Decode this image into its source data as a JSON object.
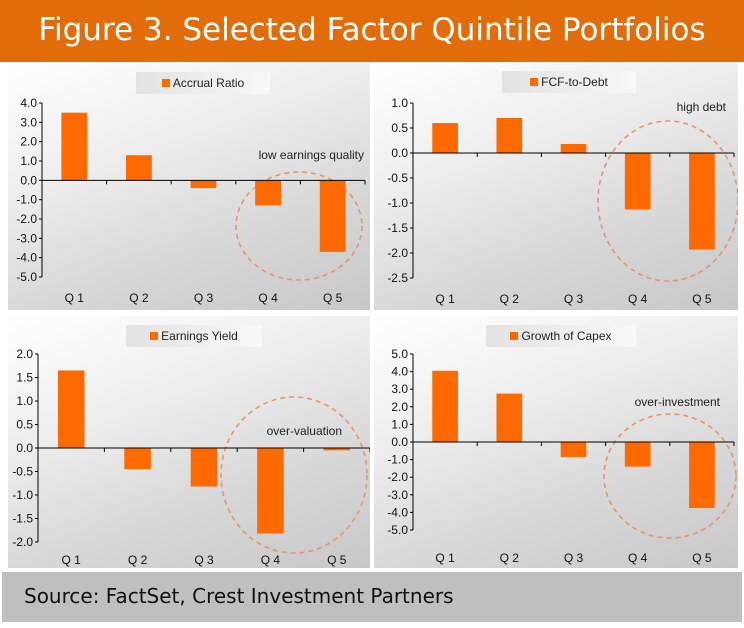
{
  "title": "Figure 3. Selected Factor Quintile Portfolios",
  "source": "Source: FactSet, Crest Investment Partners",
  "colors": {
    "header": "#e36c0a",
    "bar": "#ff6a00",
    "annotation_circle": "#e8956a",
    "footer": "#bfbfbf"
  },
  "chart_data": [
    {
      "type": "bar",
      "title": "",
      "legend": "Accrual Ratio",
      "legend_position": "top-center",
      "categories": [
        "Q 1",
        "Q 2",
        "Q 3",
        "Q 4",
        "Q 5"
      ],
      "values": [
        3.5,
        1.3,
        -0.4,
        -1.3,
        -3.7
      ],
      "ylim": [
        -5.0,
        4.0
      ],
      "yticks": [
        4.0,
        3.0,
        2.0,
        1.0,
        0.0,
        -1.0,
        -2.0,
        -3.0,
        -4.0,
        -5.0
      ],
      "ytick_labels": [
        "4.0",
        "3.0",
        "2.0",
        "1.0",
        "0.0",
        "-1.0",
        "-2.0",
        "-3.0",
        "-4.0",
        "-5.0"
      ],
      "xlabel": "",
      "ylabel": "",
      "grid": false,
      "annotation": "low earnings quality",
      "annotation_highlight": [
        "Q 4",
        "Q 5"
      ]
    },
    {
      "type": "bar",
      "title": "",
      "legend": "FCF-to-Debt",
      "legend_position": "top-center",
      "categories": [
        "Q 1",
        "Q 2",
        "Q 3",
        "Q 4",
        "Q 5"
      ],
      "values": [
        0.6,
        0.7,
        0.18,
        -1.13,
        -1.93
      ],
      "ylim": [
        -2.5,
        1.0
      ],
      "yticks": [
        1.0,
        0.5,
        0.0,
        -0.5,
        -1.0,
        -1.5,
        -2.0,
        -2.5
      ],
      "ytick_labels": [
        "1.0",
        "0.5",
        "0.0",
        "-0.5",
        "-1.0",
        "-1.5",
        "-2.0",
        "-2.5"
      ],
      "xlabel": "",
      "ylabel": "",
      "grid": false,
      "annotation": "high debt",
      "annotation_highlight": [
        "Q 4",
        "Q 5"
      ]
    },
    {
      "type": "bar",
      "title": "",
      "legend": "Earnings Yield",
      "legend_position": "top-center",
      "categories": [
        "Q 1",
        "Q 2",
        "Q 3",
        "Q 4",
        "Q 5"
      ],
      "values": [
        1.65,
        -0.45,
        -0.82,
        -1.82,
        -0.05
      ],
      "ylim": [
        -2.0,
        2.0
      ],
      "yticks": [
        2.0,
        1.5,
        1.0,
        0.5,
        0.0,
        -0.5,
        -1.0,
        -1.5,
        -2.0
      ],
      "ytick_labels": [
        "2.0",
        "1.5",
        "1.0",
        "0.5",
        "0.0",
        "-0.5",
        "-1.0",
        "-1.5",
        "-2.0"
      ],
      "xlabel": "",
      "ylabel": "",
      "grid": false,
      "annotation": "over-valuation",
      "annotation_highlight": [
        "Q 4",
        "Q 5"
      ]
    },
    {
      "type": "bar",
      "title": "",
      "legend": "Growth of Capex",
      "legend_position": "top-center",
      "categories": [
        "Q 1",
        "Q 2",
        "Q 3",
        "Q 4",
        "Q 5"
      ],
      "values": [
        4.05,
        2.75,
        -0.85,
        -1.4,
        -3.75
      ],
      "ylim": [
        -5.0,
        5.0
      ],
      "yticks": [
        5.0,
        4.0,
        3.0,
        2.0,
        1.0,
        0.0,
        -1.0,
        -2.0,
        -3.0,
        -4.0,
        -5.0
      ],
      "ytick_labels": [
        "5.0",
        "4.0",
        "3.0",
        "2.0",
        "1.0",
        "0.0",
        "-1.0",
        "-2.0",
        "-3.0",
        "-4.0",
        "-5.0"
      ],
      "xlabel": "",
      "ylabel": "",
      "grid": false,
      "annotation": "over-investment",
      "annotation_highlight": [
        "Q 4",
        "Q 5"
      ]
    }
  ]
}
